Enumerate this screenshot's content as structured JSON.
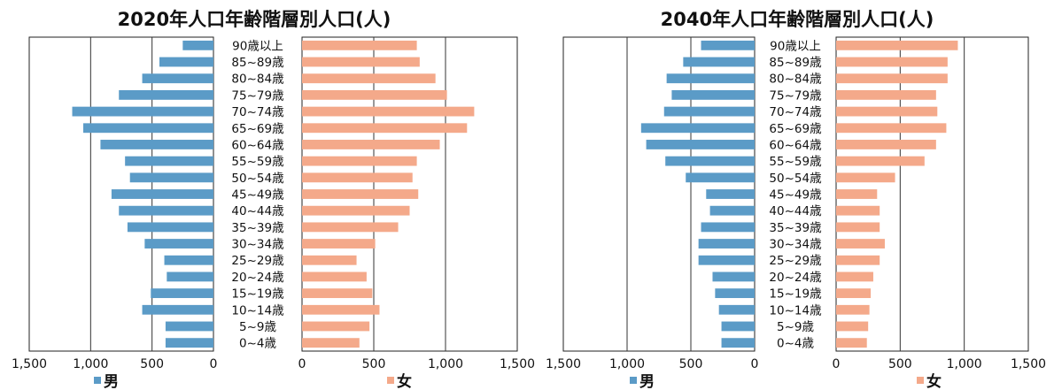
{
  "chart_data": [
    {
      "type": "bar",
      "title": "2020年人口年齢階層別人口(人)",
      "categories": [
        "90歳以上",
        "85~89歳",
        "80~84歳",
        "75~79歳",
        "70~74歳",
        "65~69歳",
        "60~64歳",
        "55~59歳",
        "50~54歳",
        "45~49歳",
        "40~44歳",
        "35~39歳",
        "30~34歳",
        "25~29歳",
        "20~24歳",
        "15~19歳",
        "10~14歳",
        "5~9歳",
        "0~4歳"
      ],
      "xlim": [
        0,
        1500
      ],
      "ticks": [
        0,
        500,
        1000,
        1500
      ],
      "tick_labels_left": [
        "1,500",
        "1,000",
        "500",
        "0"
      ],
      "tick_labels_right": [
        "0",
        "500",
        "1,000",
        "1,500"
      ],
      "grid": true,
      "legend_position": "bottom",
      "series": [
        {
          "name": "男",
          "color": "#5b9bc7",
          "values": [
            250,
            440,
            580,
            770,
            1150,
            1060,
            920,
            720,
            680,
            830,
            770,
            700,
            560,
            400,
            380,
            510,
            580,
            390,
            390
          ]
        },
        {
          "name": "女",
          "color": "#f4a98a",
          "values": [
            800,
            820,
            930,
            1010,
            1200,
            1150,
            960,
            800,
            770,
            810,
            750,
            670,
            510,
            380,
            450,
            490,
            540,
            470,
            400
          ]
        }
      ]
    },
    {
      "type": "bar",
      "title": "2040年人口年齢階層別人口(人)",
      "categories": [
        "90歳以上",
        "85~89歳",
        "80~84歳",
        "75~79歳",
        "70~74歳",
        "65~69歳",
        "60~64歳",
        "55~59歳",
        "50~54歳",
        "45~49歳",
        "40~44歳",
        "35~39歳",
        "30~34歳",
        "25~29歳",
        "20~24歳",
        "15~19歳",
        "10~14歳",
        "5~9歳",
        "0~4歳"
      ],
      "xlim": [
        0,
        1500
      ],
      "ticks": [
        0,
        500,
        1000,
        1500
      ],
      "tick_labels_left": [
        "1,500",
        "1,000",
        "500",
        "0"
      ],
      "tick_labels_right": [
        "0",
        "500",
        "1,000",
        "1,500"
      ],
      "grid": true,
      "legend_position": "bottom",
      "series": [
        {
          "name": "男",
          "color": "#5b9bc7",
          "values": [
            420,
            560,
            690,
            650,
            710,
            890,
            850,
            700,
            540,
            380,
            350,
            420,
            440,
            440,
            330,
            310,
            280,
            260,
            260
          ]
        },
        {
          "name": "女",
          "color": "#f4a98a",
          "values": [
            950,
            870,
            870,
            780,
            790,
            860,
            780,
            690,
            460,
            320,
            340,
            340,
            380,
            340,
            290,
            270,
            260,
            250,
            240
          ]
        }
      ]
    }
  ]
}
